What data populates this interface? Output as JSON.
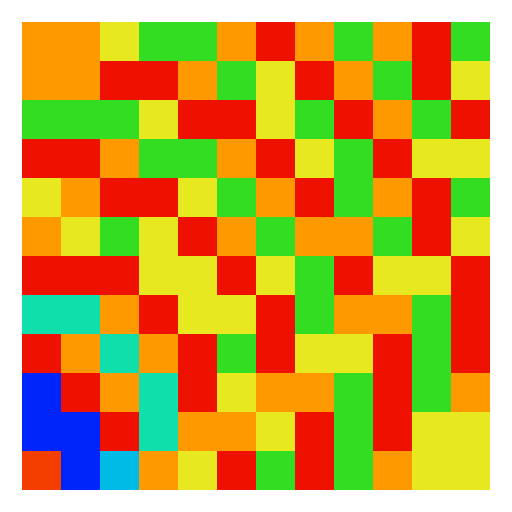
{
  "chart_data": {
    "type": "heatmap",
    "tick_labels": false,
    "xlim": [
      0,
      12
    ],
    "ylim": [
      0,
      12
    ],
    "cells": [
      [
        0.8,
        0.8,
        0.65,
        0.48,
        0.48,
        0.8,
        0.95,
        0.8,
        0.48,
        0.8,
        0.95,
        0.48
      ],
      [
        0.8,
        0.8,
        0.95,
        0.95,
        0.8,
        0.48,
        0.65,
        0.95,
        0.8,
        0.48,
        0.95,
        0.65
      ],
      [
        0.48,
        0.48,
        0.48,
        0.65,
        0.95,
        0.95,
        0.65,
        0.48,
        0.95,
        0.8,
        0.48,
        0.95
      ],
      [
        0.95,
        0.95,
        0.8,
        0.48,
        0.48,
        0.8,
        0.95,
        0.65,
        0.48,
        0.95,
        0.65,
        0.65
      ],
      [
        0.65,
        0.8,
        0.95,
        0.95,
        0.65,
        0.48,
        0.8,
        0.95,
        0.48,
        0.8,
        0.95,
        0.48
      ],
      [
        0.8,
        0.65,
        0.48,
        0.65,
        0.95,
        0.8,
        0.48,
        0.8,
        0.8,
        0.48,
        0.95,
        0.65
      ],
      [
        0.95,
        0.95,
        0.95,
        0.65,
        0.65,
        0.95,
        0.65,
        0.48,
        0.95,
        0.65,
        0.65,
        0.95
      ],
      [
        0.35,
        0.35,
        0.8,
        0.95,
        0.65,
        0.65,
        0.95,
        0.48,
        0.8,
        0.8,
        0.48,
        0.95
      ],
      [
        0.95,
        0.8,
        0.35,
        0.8,
        0.95,
        0.48,
        0.95,
        0.65,
        0.65,
        0.95,
        0.48,
        0.95
      ],
      [
        0.05,
        0.95,
        0.8,
        0.35,
        0.95,
        0.65,
        0.8,
        0.8,
        0.48,
        0.95,
        0.48,
        0.8
      ],
      [
        0.05,
        0.05,
        0.95,
        0.35,
        0.8,
        0.8,
        0.65,
        0.95,
        0.48,
        0.95,
        0.65,
        0.65
      ],
      [
        0.9,
        0.05,
        0.25,
        0.8,
        0.65,
        0.95,
        0.48,
        0.95,
        0.48,
        0.8,
        0.65,
        0.65
      ]
    ]
  }
}
